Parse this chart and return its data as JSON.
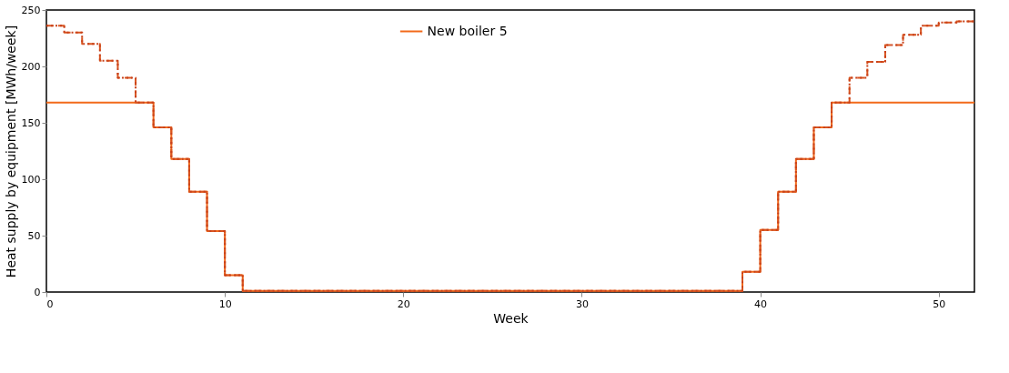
{
  "chart_data": {
    "type": "step",
    "xlabel": "Week",
    "ylabel": "Heat supply by equipment [MWh/week]",
    "x": [
      0,
      1,
      2,
      3,
      4,
      5,
      6,
      7,
      8,
      9,
      10,
      11,
      12,
      13,
      14,
      15,
      16,
      17,
      18,
      19,
      20,
      21,
      22,
      23,
      24,
      25,
      26,
      27,
      28,
      29,
      30,
      31,
      32,
      33,
      34,
      35,
      36,
      37,
      38,
      39,
      40,
      41,
      42,
      43,
      44,
      45,
      46,
      47,
      48,
      49,
      50,
      51,
      52
    ],
    "series": [
      {
        "name": "New boiler 5",
        "color": "#f26a1b",
        "line_style": "solid",
        "values": [
          168,
          168,
          168,
          168,
          168,
          168,
          146,
          118,
          89,
          54,
          15,
          1,
          1,
          1,
          1,
          1,
          1,
          1,
          1,
          1,
          1,
          1,
          1,
          1,
          1,
          1,
          1,
          1,
          1,
          1,
          1,
          1,
          1,
          1,
          1,
          1,
          1,
          1,
          1,
          18,
          55,
          89,
          118,
          146,
          168,
          168,
          168,
          168,
          168,
          168,
          168,
          168,
          168
        ]
      },
      {
        "color": "#d9541e",
        "line_style": "dashed",
        "values": [
          236,
          230,
          220,
          205,
          190,
          168,
          146,
          118,
          89,
          54,
          15,
          1,
          1,
          1,
          1,
          1,
          1,
          1,
          1,
          1,
          1,
          1,
          1,
          1,
          1,
          1,
          1,
          1,
          1,
          1,
          1,
          1,
          1,
          1,
          1,
          1,
          1,
          1,
          1,
          18,
          55,
          89,
          118,
          146,
          168,
          190,
          204,
          219,
          228,
          236,
          239,
          240,
          240
        ]
      },
      {
        "color": "#c8401a",
        "line_style": "dotted",
        "values": [
          236,
          230,
          220,
          205,
          190,
          168,
          146,
          118,
          89,
          54,
          15,
          1,
          1,
          1,
          1,
          1,
          1,
          1,
          1,
          1,
          1,
          1,
          1,
          1,
          1,
          1,
          1,
          1,
          1,
          1,
          1,
          1,
          1,
          1,
          1,
          1,
          1,
          1,
          1,
          18,
          55,
          89,
          118,
          146,
          168,
          190,
          204,
          219,
          228,
          236,
          239,
          240,
          240
        ]
      }
    ],
    "xlim": [
      0,
      52
    ],
    "xticks": [
      0,
      10,
      20,
      30,
      40,
      50
    ],
    "ylim": [
      0,
      250
    ],
    "yticks": [
      0,
      50,
      100,
      150,
      200,
      250
    ],
    "grid": false,
    "legend": "top"
  }
}
